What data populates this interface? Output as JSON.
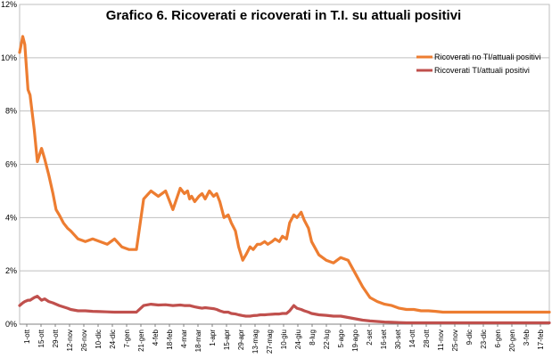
{
  "chart_data": {
    "type": "line",
    "title": "Grafico 6. Ricoverati e ricoverati in T.I. su attuali positivi",
    "ylim": [
      0,
      12
    ],
    "yticks": [
      0,
      2,
      4,
      6,
      8,
      10,
      12
    ],
    "ytick_suffix": "%",
    "grid": true,
    "legend_position": "top-right",
    "x_tick_labels": [
      "1-ott",
      "15-ott",
      "29-ott",
      "12-nov",
      "26-nov",
      "10-dic",
      "24-dic",
      "7-gen",
      "21-gen",
      "4-feb",
      "18-feb",
      "4-mar",
      "18-mar",
      "1-apr",
      "15-apr",
      "29-apr",
      "13-mag",
      "27-mag",
      "10-giu",
      "24-giu",
      "8-lug",
      "22-lug",
      "5-ago",
      "19-ago",
      "2-set",
      "16-set",
      "30-set",
      "14-ott",
      "28-ott",
      "11-nov",
      "25-nov",
      "9-dic",
      "23-dic",
      "6-gen",
      "20-gen",
      "3-feb",
      "17-feb"
    ],
    "x": [
      0,
      3,
      5,
      8,
      10,
      14,
      17,
      21,
      24,
      28,
      32,
      35,
      38,
      42,
      46,
      49,
      56,
      63,
      70,
      77,
      84,
      91,
      98,
      105,
      112,
      119,
      126,
      133,
      140,
      147,
      154,
      158,
      161,
      163,
      165,
      168,
      172,
      175,
      178,
      182,
      186,
      189,
      192,
      196,
      200,
      203,
      207,
      210,
      214,
      217,
      221,
      224,
      228,
      231,
      235,
      238,
      242,
      245,
      249,
      252,
      256,
      259,
      263,
      266,
      270,
      273,
      277,
      280,
      287,
      294,
      301,
      308,
      315,
      322,
      329,
      336,
      343,
      350,
      357,
      364,
      371,
      378,
      385,
      392,
      399,
      406,
      413,
      420,
      427,
      434,
      441,
      448,
      455,
      462,
      469,
      476,
      483,
      490,
      497,
      504,
      508
    ],
    "series": [
      {
        "name": "Ricoverati no TI/attuali positivi",
        "color": "#ed7d31",
        "values": [
          10.2,
          10.8,
          10.5,
          8.8,
          8.6,
          7.3,
          6.1,
          6.6,
          6.2,
          5.6,
          4.9,
          4.3,
          4.1,
          3.8,
          3.6,
          3.5,
          3.2,
          3.1,
          3.2,
          3.1,
          3.0,
          3.2,
          2.9,
          2.8,
          2.8,
          4.7,
          5.0,
          4.8,
          5.0,
          4.3,
          5.1,
          4.9,
          5.0,
          4.7,
          4.8,
          4.6,
          4.8,
          4.9,
          4.7,
          5.0,
          4.8,
          4.9,
          4.6,
          4.0,
          4.1,
          3.8,
          3.5,
          2.9,
          2.4,
          2.6,
          2.9,
          2.8,
          3.0,
          3.0,
          3.1,
          3.0,
          3.1,
          3.2,
          3.1,
          3.3,
          3.2,
          3.8,
          4.1,
          4.0,
          4.2,
          3.9,
          3.6,
          3.1,
          2.6,
          2.4,
          2.3,
          2.5,
          2.4,
          1.9,
          1.4,
          1.0,
          0.85,
          0.75,
          0.7,
          0.6,
          0.55,
          0.55,
          0.5,
          0.5,
          0.48,
          0.45,
          0.45,
          0.45,
          0.45,
          0.45,
          0.45,
          0.45,
          0.45,
          0.45,
          0.45,
          0.45,
          0.45,
          0.45,
          0.45,
          0.45,
          0.45
        ]
      },
      {
        "name": "Ricoverati TI/attuali positivi",
        "color": "#c0504d",
        "values": [
          0.7,
          0.8,
          0.85,
          0.9,
          0.9,
          1.0,
          1.05,
          0.9,
          0.95,
          0.85,
          0.8,
          0.75,
          0.7,
          0.65,
          0.6,
          0.55,
          0.5,
          0.5,
          0.48,
          0.47,
          0.46,
          0.45,
          0.45,
          0.45,
          0.45,
          0.7,
          0.75,
          0.72,
          0.73,
          0.7,
          0.72,
          0.7,
          0.7,
          0.7,
          0.68,
          0.65,
          0.62,
          0.6,
          0.62,
          0.6,
          0.58,
          0.55,
          0.5,
          0.45,
          0.45,
          0.4,
          0.38,
          0.35,
          0.32,
          0.3,
          0.3,
          0.32,
          0.33,
          0.35,
          0.35,
          0.36,
          0.37,
          0.38,
          0.38,
          0.4,
          0.4,
          0.5,
          0.7,
          0.6,
          0.55,
          0.5,
          0.45,
          0.4,
          0.35,
          0.33,
          0.3,
          0.3,
          0.25,
          0.2,
          0.15,
          0.12,
          0.1,
          0.08,
          0.07,
          0.06,
          0.05,
          0.05,
          0.05,
          0.05,
          0.05,
          0.05,
          0.05,
          0.05,
          0.05,
          0.05,
          0.05,
          0.05,
          0.05,
          0.05,
          0.05,
          0.05,
          0.05,
          0.05,
          0.05,
          0.05,
          0.05
        ]
      }
    ]
  }
}
